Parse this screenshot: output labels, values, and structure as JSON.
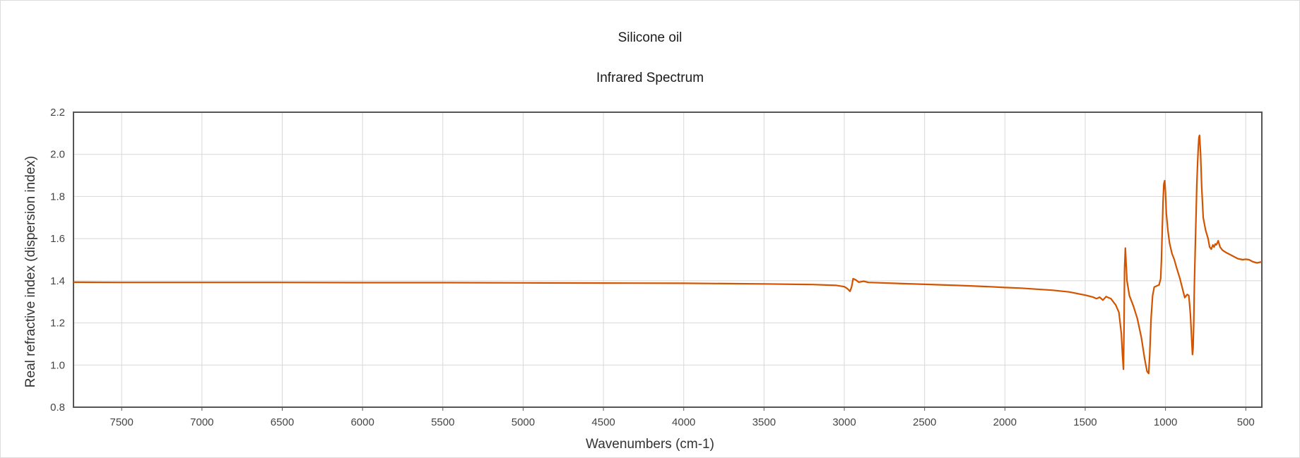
{
  "chart_data": {
    "type": "line",
    "title": "Silicone oil",
    "subtitle": "Infrared Spectrum",
    "xlabel": "Wavenumbers (cm-1)",
    "ylabel": "Real refractive index (dispersion index)",
    "xlim": [
      7800,
      400
    ],
    "x_reversed": true,
    "ylim": [
      0.8,
      2.2
    ],
    "x_ticks": [
      7500,
      7000,
      6500,
      6000,
      5500,
      5000,
      4500,
      4000,
      3500,
      3000,
      2500,
      2000,
      1500,
      1000,
      500
    ],
    "y_ticks": [
      0.8,
      1.0,
      1.2,
      1.4,
      1.6,
      1.8,
      2.0,
      2.2
    ],
    "grid": true,
    "legend": "none",
    "series": [
      {
        "color": "#d35400",
        "x": [
          7800,
          7500,
          7000,
          6500,
          6000,
          5500,
          5000,
          4500,
          4000,
          3500,
          3200,
          3050,
          3000,
          2980,
          2965,
          2955,
          2945,
          2930,
          2910,
          2880,
          2850,
          2700,
          2500,
          2300,
          2100,
          2000,
          1900,
          1700,
          1600,
          1500,
          1450,
          1430,
          1410,
          1390,
          1370,
          1340,
          1310,
          1290,
          1275,
          1268,
          1262,
          1258,
          1255,
          1250,
          1240,
          1225,
          1200,
          1175,
          1150,
          1130,
          1115,
          1105,
          1098,
          1090,
          1080,
          1070,
          1055,
          1040,
          1030,
          1025,
          1020,
          1015,
          1010,
          1005,
          1000,
          995,
          985,
          975,
          960,
          945,
          930,
          910,
          890,
          880,
          865,
          855,
          850,
          845,
          838,
          832,
          828,
          824,
          820,
          815,
          810,
          805,
          800,
          796,
          792,
          788,
          782,
          775,
          765,
          750,
          735,
          725,
          715,
          705,
          698,
          690,
          685,
          680,
          672,
          660,
          645,
          625,
          600,
          575,
          550,
          520,
          500,
          480,
          455,
          430,
          400
        ],
        "values": [
          1.393,
          1.392,
          1.392,
          1.392,
          1.391,
          1.391,
          1.39,
          1.389,
          1.388,
          1.385,
          1.382,
          1.378,
          1.372,
          1.362,
          1.35,
          1.37,
          1.41,
          1.405,
          1.393,
          1.398,
          1.392,
          1.388,
          1.383,
          1.378,
          1.372,
          1.368,
          1.365,
          1.355,
          1.347,
          1.332,
          1.322,
          1.315,
          1.322,
          1.308,
          1.325,
          1.315,
          1.285,
          1.25,
          1.15,
          1.05,
          0.98,
          1.2,
          1.46,
          1.555,
          1.4,
          1.33,
          1.28,
          1.22,
          1.13,
          1.03,
          0.97,
          0.96,
          1.05,
          1.22,
          1.33,
          1.37,
          1.375,
          1.38,
          1.41,
          1.5,
          1.65,
          1.78,
          1.86,
          1.875,
          1.82,
          1.72,
          1.64,
          1.58,
          1.53,
          1.5,
          1.46,
          1.41,
          1.35,
          1.32,
          1.335,
          1.33,
          1.29,
          1.24,
          1.14,
          1.05,
          1.08,
          1.2,
          1.38,
          1.55,
          1.7,
          1.85,
          1.96,
          2.03,
          2.08,
          2.09,
          2.01,
          1.85,
          1.7,
          1.64,
          1.6,
          1.56,
          1.55,
          1.57,
          1.56,
          1.575,
          1.57,
          1.575,
          1.59,
          1.56,
          1.545,
          1.535,
          1.525,
          1.515,
          1.505,
          1.5,
          1.502,
          1.5,
          1.49,
          1.485,
          1.49
        ]
      }
    ]
  }
}
